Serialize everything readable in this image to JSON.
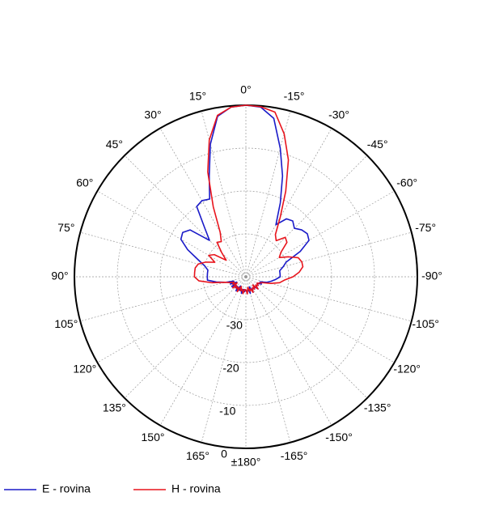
{
  "chart_data": {
    "type": "polar-line",
    "theta_zero": "top",
    "theta_direction": "counterclockwise",
    "rlim": [
      -40,
      0
    ],
    "rticks": [
      -30,
      -20,
      -10,
      0
    ],
    "thetaticks": [
      {
        "value": 0,
        "label": "0°"
      },
      {
        "value": 15,
        "label": "15°"
      },
      {
        "value": 30,
        "label": "30°"
      },
      {
        "value": 45,
        "label": "45°"
      },
      {
        "value": 60,
        "label": "60°"
      },
      {
        "value": 75,
        "label": "75°"
      },
      {
        "value": 90,
        "label": "90°"
      },
      {
        "value": 105,
        "label": "105°"
      },
      {
        "value": 120,
        "label": "120°"
      },
      {
        "value": 135,
        "label": "135°"
      },
      {
        "value": 150,
        "label": "150°"
      },
      {
        "value": 165,
        "label": "165°"
      },
      {
        "value": 180,
        "label": "±180°"
      },
      {
        "value": -165,
        "label": "-165°"
      },
      {
        "value": -150,
        "label": "-150°"
      },
      {
        "value": -135,
        "label": "-135°"
      },
      {
        "value": -120,
        "label": "-120°"
      },
      {
        "value": -105,
        "label": "-105°"
      },
      {
        "value": -90,
        "label": "-90°"
      },
      {
        "value": -75,
        "label": "-75°"
      },
      {
        "value": -60,
        "label": "-60°"
      },
      {
        "value": -45,
        "label": "-45°"
      },
      {
        "value": -30,
        "label": "-30°"
      },
      {
        "value": -15,
        "label": "-15°"
      }
    ],
    "grid": true,
    "legend": "lower left",
    "theta": [
      -180,
      -175,
      -170,
      -165,
      -160,
      -155,
      -150,
      -145,
      -140,
      -135,
      -130,
      -125,
      -120,
      -115,
      -110,
      -105,
      -100,
      -95,
      -90,
      -85,
      -80,
      -75,
      -70,
      -65,
      -60,
      -55,
      -50,
      -45,
      -40,
      -35,
      -30,
      -25,
      -20,
      -15,
      -10,
      -5,
      0,
      5,
      10,
      15,
      20,
      25,
      30,
      35,
      40,
      45,
      50,
      55,
      60,
      65,
      70,
      75,
      80,
      85,
      90,
      95,
      100,
      105,
      110,
      115,
      120,
      125,
      130,
      135,
      140,
      145,
      150,
      155,
      160,
      165,
      170,
      175,
      180
    ],
    "series": [
      {
        "name": "E - rovina",
        "color": "#1a1ac8",
        "values": [
          -37,
          -36.5,
          -37,
          -36,
          -37.5,
          -36,
          -37,
          -36.5,
          -37,
          -36,
          -37,
          -36.5,
          -37,
          -36,
          -36.5,
          -35,
          -34,
          -33,
          -32,
          -32,
          -32,
          -31,
          -30,
          -26,
          -23,
          -22.5,
          -23,
          -24,
          -23,
          -23.5,
          -26,
          -21,
          -15,
          -9,
          -2.5,
          -0.3,
          0,
          -0.3,
          -2,
          -8,
          -15,
          -20,
          -19.5,
          -20,
          -25,
          -28,
          -23,
          -22,
          -22.5,
          -25,
          -28,
          -30,
          -31,
          -31,
          -31,
          -31,
          -33,
          -35,
          -37,
          -36,
          -37.5,
          -36,
          -37,
          -36.5,
          -37,
          -36,
          -37.5,
          -36.5,
          -37,
          -36,
          -37,
          -36.5,
          -37
        ]
      },
      {
        "name": "H - rovina",
        "color": "#e8141c",
        "values": [
          -37,
          -36,
          -37.5,
          -36.5,
          -37,
          -36,
          -37,
          -36.5,
          -37.5,
          -36,
          -37,
          -36.5,
          -37,
          -36.5,
          -36,
          -34,
          -32,
          -31,
          -29,
          -27.5,
          -26.5,
          -26.5,
          -27,
          -29,
          -31,
          -30,
          -27.5,
          -27,
          -29,
          -28,
          -24,
          -18,
          -11,
          -5.5,
          -1,
          -0.2,
          0,
          -0.3,
          -1.8,
          -7,
          -14,
          -22,
          -28,
          -30,
          -29.5,
          -32,
          -34,
          -31,
          -30,
          -32,
          -30,
          -28.5,
          -28,
          -28,
          -28,
          -29,
          -32,
          -35,
          -36,
          -37,
          -36.5,
          -37.5,
          -36,
          -37,
          -36.5,
          -37,
          -36,
          -37.5,
          -36.5,
          -37,
          -36,
          -37,
          -37
        ]
      }
    ]
  }
}
